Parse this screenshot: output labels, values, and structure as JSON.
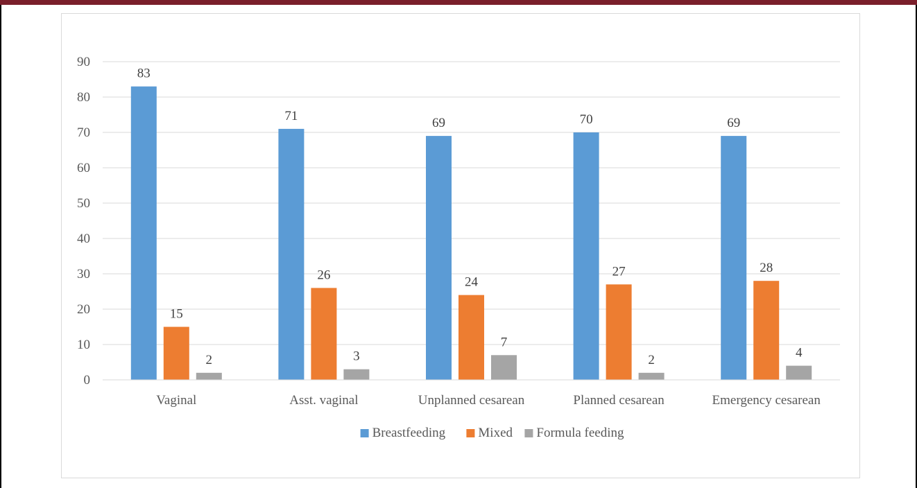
{
  "chart_data": {
    "type": "bar",
    "categories": [
      "Vaginal",
      "Asst. vaginal",
      "Unplanned cesarean",
      "Planned cesarean",
      "Emergency cesarean"
    ],
    "series": [
      {
        "name": "Breastfeeding",
        "values": [
          83,
          71,
          69,
          70,
          69
        ],
        "color": "#5b9bd5"
      },
      {
        "name": "Mixed",
        "values": [
          15,
          26,
          24,
          27,
          28
        ],
        "color": "#ed7d31"
      },
      {
        "name": "Formula feeding",
        "values": [
          2,
          3,
          7,
          2,
          4
        ],
        "color": "#a5a5a5"
      }
    ],
    "yticks": [
      "0",
      "10",
      "20",
      "30",
      "40",
      "50",
      "60",
      "70",
      "80",
      "90"
    ],
    "ylim": [
      0,
      90
    ],
    "grid": true,
    "data_labels": true,
    "legend_position": "bottom",
    "title": "",
    "xlabel": "",
    "ylabel": ""
  },
  "colors": {
    "header_bar": "#7a1f2b",
    "gridline": "#d9d9d9",
    "text": "#595959"
  }
}
